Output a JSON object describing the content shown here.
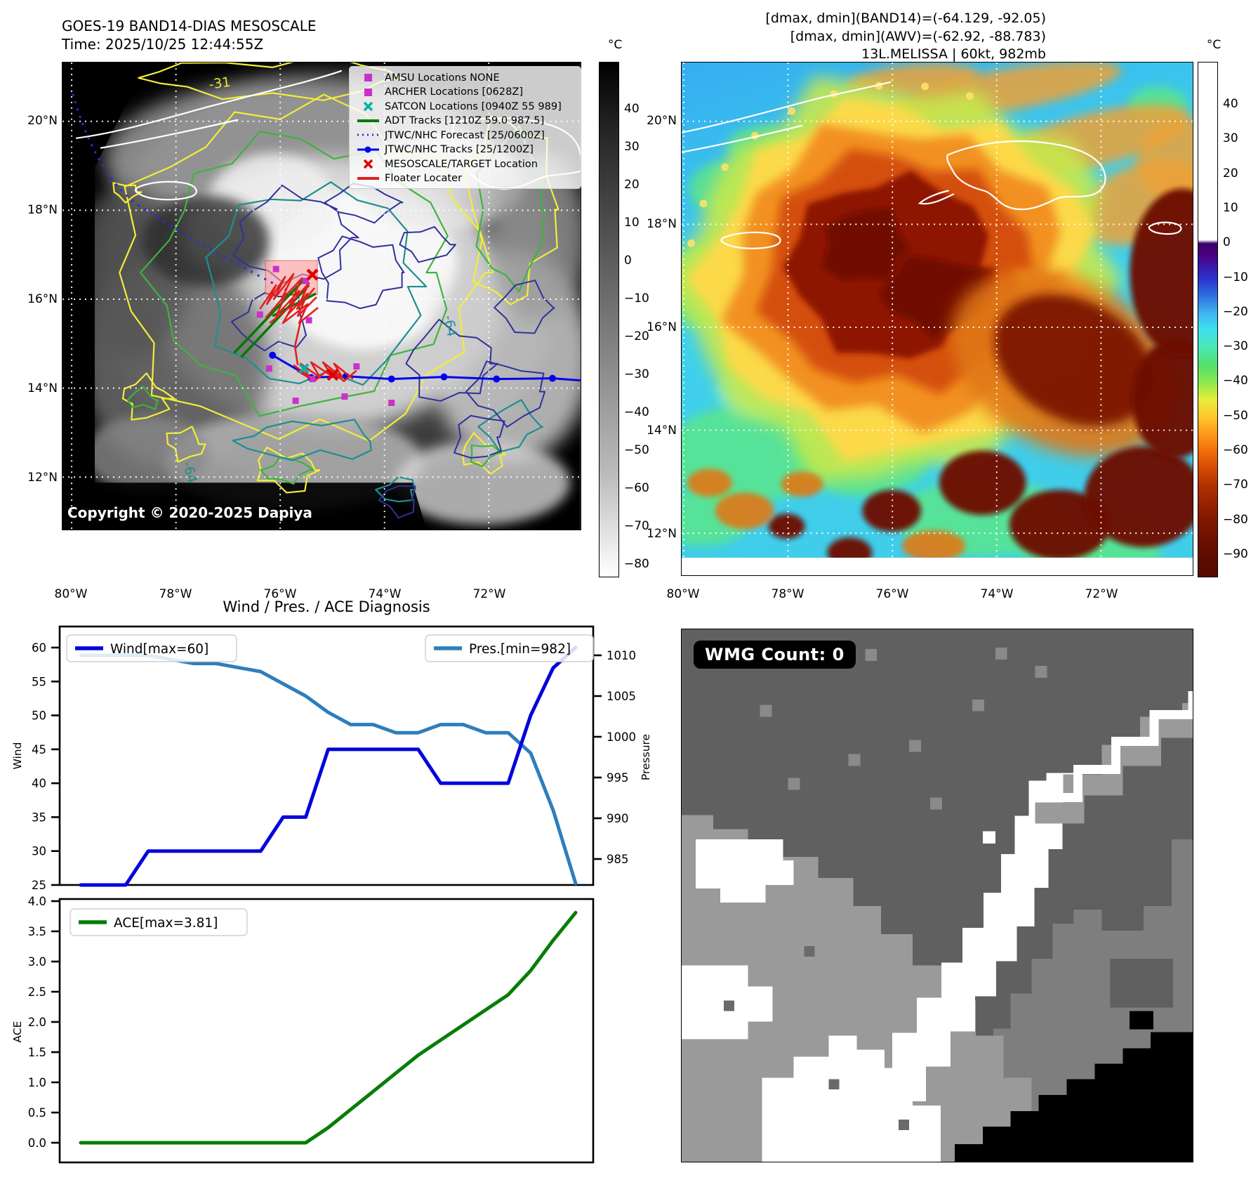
{
  "panel_band14": {
    "title_line1": "GOES-19 BAND14-DIAS MESOSCALE",
    "title_line2": "Time: 2025/10/25 12:44:55Z",
    "copyright": "Copyright © 2020-2025 Dapiya",
    "legend": [
      {
        "marker": "square",
        "color": "#c832c8",
        "label": "AMSU Locations NONE"
      },
      {
        "marker": "square",
        "color": "#c832c8",
        "label": "ARCHER Locations [0628Z]"
      },
      {
        "marker": "x",
        "color": "#00b2a2",
        "label": "SATCON Locations [0940Z 55 989]"
      },
      {
        "marker": "line",
        "color": "#007a00",
        "label": "ADT Tracks [1210Z 59.0 987.5]"
      },
      {
        "marker": "dotted",
        "color": "#2a2af0",
        "label": "JTWC/NHC Forecast [25/0600Z]"
      },
      {
        "marker": "line-dot",
        "color": "#0000ee",
        "label": "JTWC/NHC Tracks [25/1200Z]"
      },
      {
        "marker": "x",
        "color": "#e00000",
        "label": "MESOSCALE/TARGET Location"
      },
      {
        "marker": "line",
        "color": "#e02020",
        "label": "Floater Locater"
      }
    ],
    "lat_ticks": [
      "20°N",
      "18°N",
      "16°N",
      "14°N",
      "12°N"
    ],
    "lon_ticks": [
      "80°W",
      "78°W",
      "76°W",
      "74°W",
      "72°W"
    ],
    "contour_labels": [
      "-31",
      "-64",
      "-64"
    ],
    "colorbar": {
      "unit": "°C",
      "ticks": [
        "40",
        "30",
        "20",
        "10",
        "0",
        "−10",
        "−20",
        "−30",
        "−40",
        "−50",
        "−60",
        "−70",
        "−80"
      ]
    }
  },
  "panel_awv": {
    "header_line1": "[dmax, dmin](BAND14)=(-64.129, -92.05)",
    "header_line2": "[dmax, dmin](AWV)=(-62.92, -88.783)",
    "header_line3": "13L.MELISSA | 60kt, 982mb",
    "lat_ticks": [
      "20°N",
      "18°N",
      "16°N",
      "14°N",
      "12°N"
    ],
    "lon_ticks": [
      "80°W",
      "78°W",
      "76°W",
      "74°W",
      "72°W"
    ],
    "colorbar": {
      "unit": "°C",
      "ticks": [
        "40",
        "30",
        "20",
        "10",
        "0",
        "−10",
        "−20",
        "−30",
        "−40",
        "−50",
        "−60",
        "−70",
        "−80",
        "−90"
      ]
    }
  },
  "wmg": {
    "count_label": "WMG Count: 0"
  },
  "chart_data": [
    {
      "id": "wind_pres",
      "type": "line",
      "title": "Wind / Pres. / ACE Diagnosis",
      "x": [
        0,
        1,
        2,
        3,
        4,
        5,
        6,
        7,
        8,
        9,
        10,
        11,
        12,
        13,
        14,
        15,
        16,
        17,
        18,
        19,
        20,
        21,
        22
      ],
      "series": [
        {
          "name": "Wind[max=60]",
          "color": "#0202dd",
          "axis": "left",
          "values": [
            25,
            25,
            25,
            30,
            30,
            30,
            30,
            30,
            30,
            35,
            35,
            45,
            45,
            45,
            45,
            45,
            40,
            40,
            40,
            40,
            50,
            57,
            60
          ]
        },
        {
          "name": "Pres.[min=982]",
          "color": "#2e7ebc",
          "axis": "right",
          "values": [
            1010,
            1010,
            1010,
            1010,
            1009.5,
            1009,
            1009,
            1008.5,
            1008,
            1006.5,
            1005,
            1003,
            1001.5,
            1001.5,
            1000.5,
            1000.5,
            1001.5,
            1001.5,
            1000.5,
            1000.5,
            998,
            991,
            982
          ]
        }
      ],
      "left_axis": {
        "label": "Wind",
        "ticks": [
          60,
          55,
          50,
          45,
          40,
          35,
          30,
          25
        ],
        "ylim": [
          24,
          63
        ]
      },
      "right_axis": {
        "label": "Pressure",
        "ticks": [
          1010,
          1005,
          1000,
          995,
          990,
          985
        ],
        "ylim": [
          982,
          1013.5
        ]
      },
      "legend_position": "top"
    },
    {
      "id": "ace",
      "type": "line",
      "x": [
        0,
        1,
        2,
        3,
        4,
        5,
        6,
        7,
        8,
        9,
        10,
        11,
        12,
        13,
        14,
        15,
        16,
        17,
        18,
        19,
        20,
        21,
        22
      ],
      "series": [
        {
          "name": "ACE[max=3.81]",
          "color": "#077d07",
          "axis": "left",
          "values": [
            0,
            0,
            0,
            0,
            0,
            0,
            0,
            0,
            0,
            0,
            0,
            0.25,
            0.55,
            0.85,
            1.15,
            1.45,
            1.7,
            1.95,
            2.2,
            2.45,
            2.85,
            3.35,
            3.81
          ]
        }
      ],
      "left_axis": {
        "label": "ACE",
        "ticks": [
          "4.0",
          "3.5",
          "3.0",
          "2.5",
          "2.0",
          "1.5",
          "1.0",
          "0.5",
          "0.0"
        ],
        "ylim": [
          -0.33,
          4.0
        ]
      },
      "legend_position": "top-left"
    }
  ]
}
